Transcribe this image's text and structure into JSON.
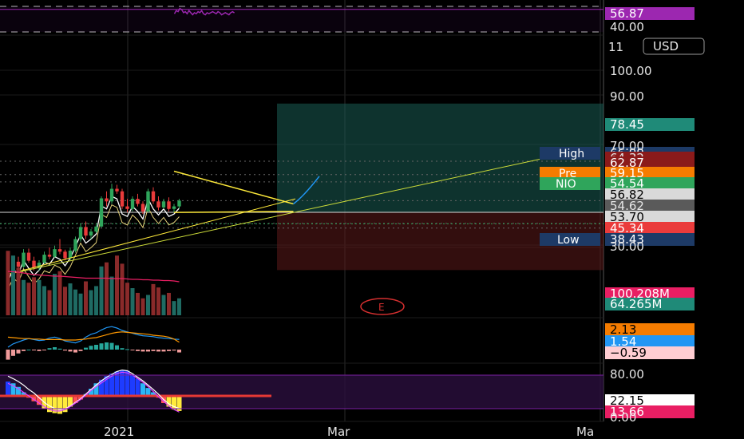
{
  "chart_data": {
    "type": "candlestick",
    "symbol": "NIO",
    "currency": "USD",
    "time_labels": [
      "2021",
      "Mar",
      "Ma"
    ],
    "rsi": {
      "levels": [
        60,
        40
      ],
      "ticks": [
        "40.00"
      ],
      "value": "56.87",
      "values": [
        56,
        59,
        58,
        61,
        60,
        57,
        58,
        56,
        59,
        57,
        55,
        57,
        56,
        58,
        57,
        59,
        56,
        55,
        57,
        56,
        57,
        58,
        57,
        56,
        58,
        57,
        55,
        56,
        57,
        56,
        55,
        57,
        58,
        56.87
      ]
    },
    "price": {
      "ticks": [
        "11",
        "100.00",
        "90.00",
        "70.00",
        "30.00"
      ],
      "ohlc": [
        [
          45.2,
          46.0,
          44.2,
          44.6
        ],
        [
          44.6,
          47.5,
          44.3,
          47.0
        ],
        [
          47.0,
          48.0,
          45.5,
          46.0
        ],
        [
          46.0,
          49.5,
          45.8,
          48.8
        ],
        [
          48.8,
          49.6,
          46.8,
          47.2
        ],
        [
          47.2,
          48.0,
          45.2,
          45.8
        ],
        [
          45.8,
          47.3,
          45.2,
          46.8
        ],
        [
          46.8,
          49.0,
          46.5,
          48.4
        ],
        [
          48.4,
          49.8,
          47.5,
          48.0
        ],
        [
          48.0,
          50.2,
          47.8,
          49.5
        ],
        [
          49.5,
          51.5,
          48.5,
          49.0
        ],
        [
          49.0,
          49.4,
          47.3,
          47.7
        ],
        [
          47.7,
          49.8,
          47.3,
          49.2
        ],
        [
          49.2,
          52.0,
          48.8,
          51.5
        ],
        [
          51.5,
          54.5,
          51.0,
          53.9
        ],
        [
          53.9,
          55.0,
          51.5,
          52.2
        ],
        [
          52.2,
          53.5,
          51.5,
          53.0
        ],
        [
          53.0,
          54.5,
          52.7,
          54.0
        ],
        [
          54.0,
          60.0,
          53.8,
          59.6
        ],
        [
          59.6,
          61.0,
          58.0,
          59.0
        ],
        [
          59.0,
          62.5,
          58.5,
          61.5
        ],
        [
          61.5,
          62.3,
          60.5,
          61.0
        ],
        [
          61.0,
          61.5,
          57.5,
          58.0
        ],
        [
          58.0,
          59.5,
          56.8,
          57.5
        ],
        [
          57.5,
          60.0,
          57.0,
          59.5
        ],
        [
          59.5,
          60.5,
          58.0,
          58.5
        ],
        [
          58.5,
          59.0,
          56.5,
          57.0
        ],
        [
          57.0,
          61.5,
          56.8,
          61.0
        ],
        [
          61.0,
          61.8,
          58.5,
          59.0
        ],
        [
          59.0,
          60.0,
          57.2,
          57.8
        ],
        [
          57.8,
          59.5,
          57.5,
          59.0
        ],
        [
          59.0,
          59.8,
          57.0,
          57.5
        ],
        [
          57.5,
          58.5,
          56.8,
          58.0
        ],
        [
          58.0,
          59.5,
          57.5,
          59.15
        ]
      ],
      "trendlines": [
        {
          "name": "triangle-top",
          "x": [
            32,
            55
          ],
          "y": [
            65.0,
            58.5
          ]
        },
        {
          "name": "triangle-base",
          "x": [
            32,
            55
          ],
          "y": [
            56.8,
            57.0
          ]
        },
        {
          "name": "long-trend",
          "x": [
            0,
            103
          ],
          "y": [
            44.5,
            67.5
          ]
        }
      ],
      "projection": {
        "x": [
          55,
          60
        ],
        "y": [
          58.5,
          64.0
        ]
      },
      "position": {
        "x_start": 58,
        "x_end": 129,
        "entry": 56.82,
        "target": 78.45,
        "stop": 45.34
      },
      "tags": [
        {
          "label": "High",
          "value": "66.99",
          "bg": "#1d3a66",
          "fg": "#ffffff"
        },
        {
          "label": "",
          "value": "64.32",
          "bg": "#8b1a1a",
          "fg": "#e6e6e6"
        },
        {
          "label": "",
          "value": "62.87",
          "bg": "#8b1a1a",
          "fg": "#ffffff"
        },
        {
          "label": "Pre",
          "value": "59.15",
          "bg": "#f57c00",
          "fg": "#ffffff"
        },
        {
          "label": "NIO",
          "value": "54.54",
          "bg": "#2fa55b",
          "fg": "#ffffff"
        },
        {
          "label": "",
          "value": "56.82",
          "bg": "#d9d9d9",
          "fg": "#000000"
        },
        {
          "label": "",
          "value": "54.62",
          "bg": "#5a5a5a",
          "fg": "#e6e6e6"
        },
        {
          "label": "",
          "value": "53.70",
          "bg": "#d9d9d9",
          "fg": "#000000"
        },
        {
          "label": "",
          "value": "45.34",
          "bg": "#ea3b3b",
          "fg": "#ffffff"
        },
        {
          "label": "Low",
          "value": "38.43",
          "bg": "#1d3a66",
          "fg": "#ffffff"
        },
        {
          "label": "",
          "value": "78.45",
          "bg": "#1f8a78",
          "fg": "#ffffff"
        }
      ]
    },
    "volume": {
      "value_tags": [
        {
          "value": "100.208M",
          "bg": "#e91e63",
          "fg": "#ffffff"
        },
        {
          "value": "64.265M",
          "bg": "#1f8a78",
          "fg": "#ffffff"
        }
      ],
      "values": [
        95,
        88,
        70,
        52,
        48,
        56,
        52,
        43,
        37,
        61,
        65,
        42,
        47,
        38,
        32,
        50,
        37,
        43,
        72,
        78,
        57,
        88,
        76,
        48,
        40,
        33,
        25,
        30,
        46,
        41,
        30,
        33,
        21,
        25
      ],
      "up": [
        false,
        true,
        false,
        true,
        false,
        false,
        true,
        true,
        false,
        true,
        false,
        false,
        true,
        true,
        true,
        false,
        true,
        true,
        true,
        false,
        true,
        false,
        false,
        false,
        true,
        false,
        false,
        true,
        false,
        false,
        true,
        false,
        true,
        true
      ],
      "ma": [
        100,
        99,
        98,
        96,
        94,
        92,
        91,
        90,
        89,
        88,
        88,
        87,
        86,
        85,
        84,
        83,
        83,
        83,
        83,
        83,
        82,
        82,
        82,
        81,
        80,
        80,
        79,
        79,
        78,
        78,
        77,
        77,
        76,
        74
      ],
      "earnings_marker": "E"
    },
    "macd": {
      "values": [
        "2.13",
        "1.54",
        "−0.59"
      ],
      "macd_line": [
        0.5,
        1.2,
        1.6,
        2.0,
        2.3,
        2.1,
        1.9,
        2.0,
        2.4,
        2.6,
        2.3,
        1.8,
        1.6,
        1.4,
        1.8,
        2.6,
        3.2,
        3.5,
        4.1,
        4.6,
        4.8,
        4.5,
        4.0,
        3.7,
        3.4,
        3.1,
        2.9,
        2.8,
        2.7,
        2.5,
        2.4,
        2.3,
        2.2,
        2.13
      ],
      "signal_line": [
        2.6,
        2.5,
        2.4,
        2.3,
        2.3,
        2.2,
        2.2,
        2.1,
        2.1,
        2.1,
        2.1,
        2.0,
        2.0,
        2.0,
        2.1,
        2.2,
        2.4,
        2.5,
        2.8,
        3.1,
        3.4,
        3.6,
        3.7,
        3.6,
        3.5,
        3.4,
        3.3,
        3.2,
        3.0,
        2.9,
        2.8,
        2.6,
        2.2,
        1.54
      ],
      "histogram": [
        -2.1,
        -1.3,
        -0.8,
        -0.3,
        0.0,
        -0.1,
        -0.3,
        -0.1,
        0.3,
        0.5,
        0.2,
        -0.2,
        -0.4,
        -0.6,
        -0.3,
        0.4,
        0.8,
        1.0,
        1.3,
        1.5,
        1.4,
        0.9,
        0.3,
        0.1,
        -0.1,
        -0.3,
        -0.4,
        -0.4,
        -0.3,
        -0.4,
        -0.4,
        -0.3,
        -0.2,
        -0.59
      ]
    },
    "oscillator": {
      "ticks": [
        "80.00",
        "0.00"
      ],
      "values": [
        "22.15",
        "13.66"
      ],
      "value_tags": [
        {
          "value": "22.15",
          "bg": "#ffffff",
          "fg": "#000000"
        },
        {
          "value": "13.66",
          "bg": "#e91e63",
          "fg": "#ffffff"
        }
      ],
      "histogram": [
        40,
        35,
        25,
        10,
        -5,
        -15,
        -25,
        -35,
        -45,
        -48,
        -50,
        -45,
        -30,
        -20,
        -10,
        5,
        20,
        35,
        45,
        55,
        62,
        68,
        72,
        70,
        60,
        48,
        35,
        22,
        10,
        -5,
        -20,
        -30,
        -38,
        -42
      ],
      "line_white": [
        55,
        48,
        40,
        30,
        18,
        8,
        -5,
        -18,
        -28,
        -35,
        -38,
        -36,
        -28,
        -18,
        -8,
        5,
        18,
        30,
        42,
        52,
        60,
        68,
        72,
        70,
        62,
        52,
        42,
        30,
        18,
        5,
        -10,
        -22,
        -30,
        -35
      ],
      "line_magenta": [
        35,
        28,
        20,
        10,
        0,
        -10,
        -20,
        -30,
        -38,
        -42,
        -42,
        -38,
        -30,
        -20,
        -10,
        2,
        15,
        26,
        36,
        46,
        55,
        62,
        66,
        64,
        58,
        48,
        38,
        26,
        12,
        -2,
        -15,
        -28,
        -38,
        -45
      ]
    }
  }
}
